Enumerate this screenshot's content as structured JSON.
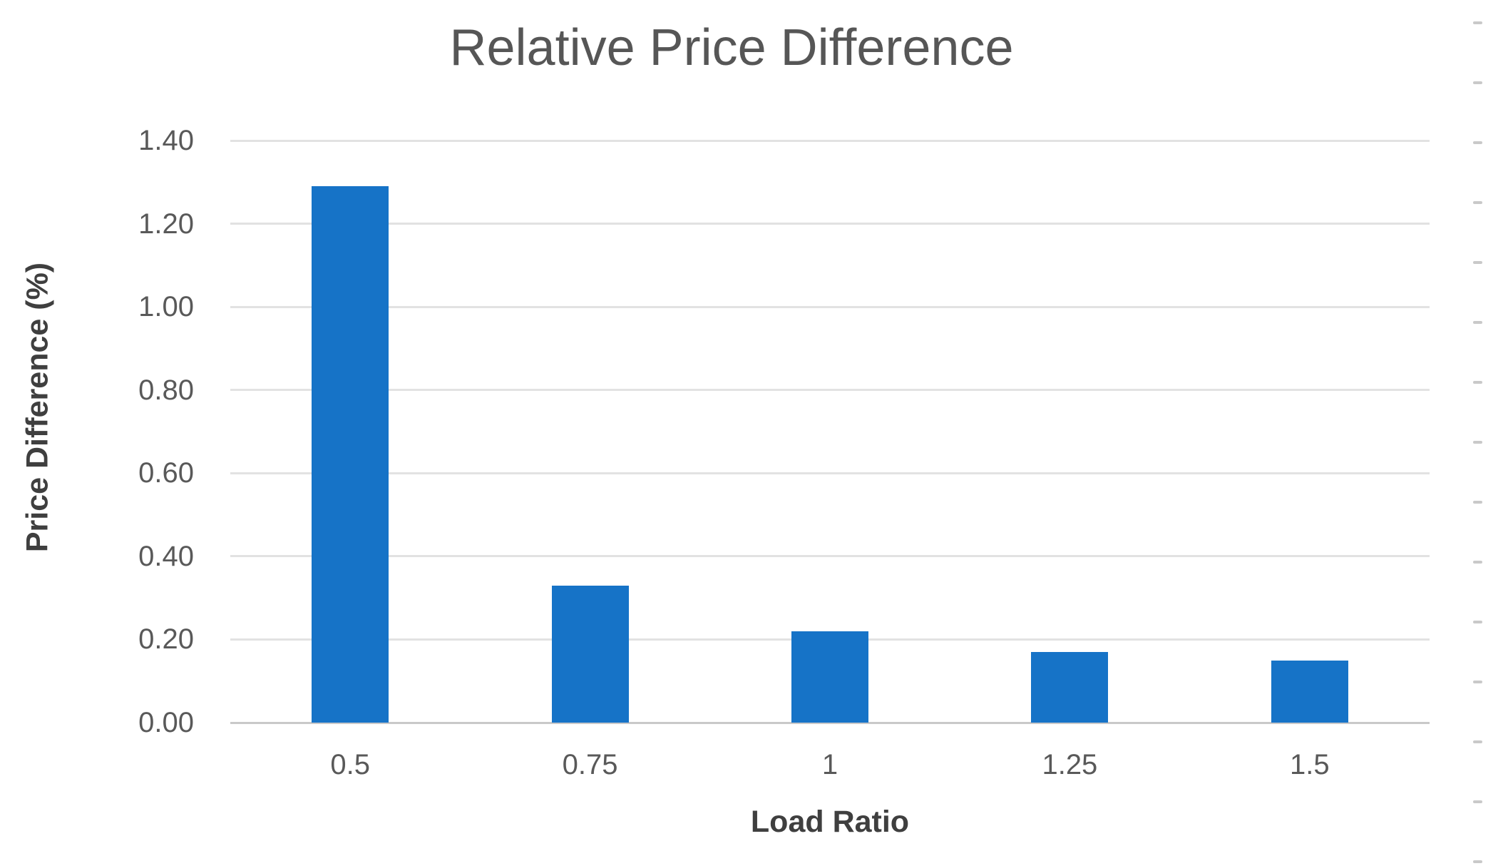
{
  "chart_data": {
    "type": "bar",
    "title": "Relative Price Difference",
    "xlabel": "Load Ratio",
    "ylabel": "Price Difference (%)",
    "categories": [
      "0.5",
      "0.75",
      "1",
      "1.25",
      "1.5"
    ],
    "values": [
      1.29,
      0.33,
      0.22,
      0.17,
      0.15
    ],
    "ylim": [
      0,
      1.4
    ],
    "y_tick_values": [
      1.4,
      1.2,
      1.0,
      0.8,
      0.6,
      0.4,
      0.2,
      0.0
    ],
    "y_tick_labels": [
      "1.40",
      "1.20",
      "1.00",
      "0.80",
      "0.60",
      "0.40",
      "0.20",
      "0.00"
    ],
    "grid": "horizontal",
    "legend": "none",
    "colors": {
      "bar": "#1673c7",
      "gridline": "#e2e2e2",
      "baseline": "#c9c9c9",
      "title_text": "#565656",
      "tick_text": "#595959",
      "axis_title_text": "#3f3f3f",
      "background": "#ffffff"
    }
  }
}
